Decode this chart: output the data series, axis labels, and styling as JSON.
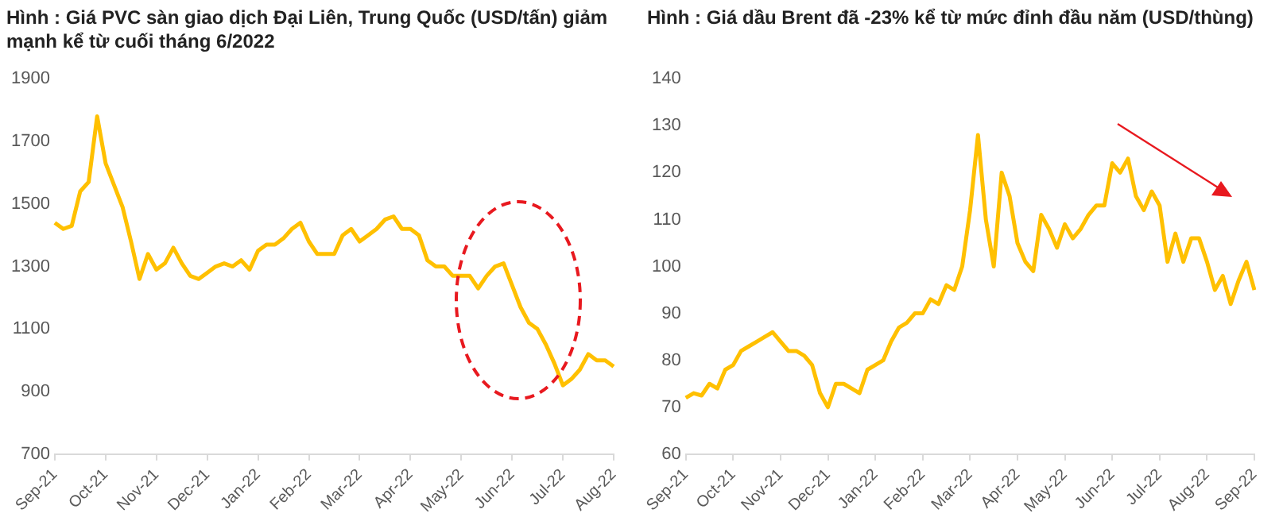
{
  "chart_data": [
    {
      "type": "line",
      "title": "Hình : Giá PVC sàn giao dịch Đại Liên, Trung Quốc (USD/tấn) giảm mạnh kể từ cuối tháng 6/2022",
      "color": "#ffc000",
      "marker": "none",
      "grid": false,
      "ylim": [
        700,
        1900
      ],
      "yticks": [
        700,
        900,
        1100,
        1300,
        1500,
        1700,
        1900
      ],
      "categories": [
        "Sep-21",
        null,
        null,
        null,
        null,
        null,
        "Oct-21",
        null,
        null,
        null,
        null,
        null,
        "Nov-21",
        null,
        null,
        null,
        null,
        null,
        "Dec-21",
        null,
        null,
        null,
        null,
        null,
        "Jan-22",
        null,
        null,
        null,
        null,
        null,
        "Feb-22",
        null,
        null,
        null,
        null,
        null,
        "Mar-22",
        null,
        null,
        null,
        null,
        null,
        "Apr-22",
        null,
        null,
        null,
        null,
        null,
        "May-22",
        null,
        null,
        null,
        null,
        null,
        "Jun-22",
        null,
        null,
        null,
        null,
        null,
        "Jul-22",
        null,
        null,
        null,
        null,
        null,
        "Aug-22"
      ],
      "values": [
        1440,
        1420,
        1430,
        1540,
        1570,
        1780,
        1630,
        1560,
        1490,
        1380,
        1260,
        1340,
        1290,
        1310,
        1360,
        1310,
        1270,
        1260,
        1280,
        1300,
        1310,
        1300,
        1320,
        1290,
        1350,
        1370,
        1370,
        1390,
        1420,
        1440,
        1380,
        1340,
        1340,
        1340,
        1400,
        1420,
        1380,
        1400,
        1420,
        1450,
        1460,
        1420,
        1420,
        1400,
        1320,
        1300,
        1300,
        1270,
        1270,
        1270,
        1230,
        1270,
        1300,
        1310,
        1240,
        1170,
        1120,
        1100,
        1050,
        990,
        920,
        940,
        970,
        1020,
        1000,
        1000,
        980
      ]
    },
    {
      "type": "line",
      "title": "Hình : Giá dầu Brent đã -23% kể từ mức đỉnh đầu năm (USD/thùng)",
      "color": "#ffc000",
      "marker": "none",
      "grid": false,
      "ylim": [
        60,
        140
      ],
      "yticks": [
        60,
        70,
        80,
        90,
        100,
        110,
        120,
        130,
        140
      ],
      "categories": [
        "Sep-21",
        null,
        null,
        null,
        null,
        null,
        "Oct-21",
        null,
        null,
        null,
        null,
        null,
        "Nov-21",
        null,
        null,
        null,
        null,
        null,
        "Dec-21",
        null,
        null,
        null,
        null,
        null,
        "Jan-22",
        null,
        null,
        null,
        null,
        null,
        "Feb-22",
        null,
        null,
        null,
        null,
        null,
        "Mar-22",
        null,
        null,
        null,
        null,
        null,
        "Apr-22",
        null,
        null,
        null,
        null,
        null,
        "May-22",
        null,
        null,
        null,
        null,
        null,
        "Jun-22",
        null,
        null,
        null,
        null,
        null,
        "Jul-22",
        null,
        null,
        null,
        null,
        null,
        "Aug-22",
        null,
        null,
        null,
        null,
        null,
        "Sep-22"
      ],
      "values": [
        72,
        73,
        72.5,
        75,
        74,
        78,
        79,
        82,
        83,
        84,
        85,
        86,
        84,
        82,
        82,
        81,
        79,
        73,
        70,
        75,
        75,
        74,
        73,
        78,
        79,
        80,
        84,
        87,
        88,
        90,
        90,
        93,
        92,
        96,
        95,
        100,
        112,
        128,
        110,
        100,
        120,
        115,
        105,
        101,
        99,
        111,
        108,
        104,
        109,
        106,
        108,
        111,
        113,
        113,
        122,
        120,
        123,
        115,
        112,
        116,
        113,
        101,
        107,
        101,
        106,
        106,
        101,
        95,
        98,
        92,
        97,
        101,
        95
      ]
    }
  ]
}
